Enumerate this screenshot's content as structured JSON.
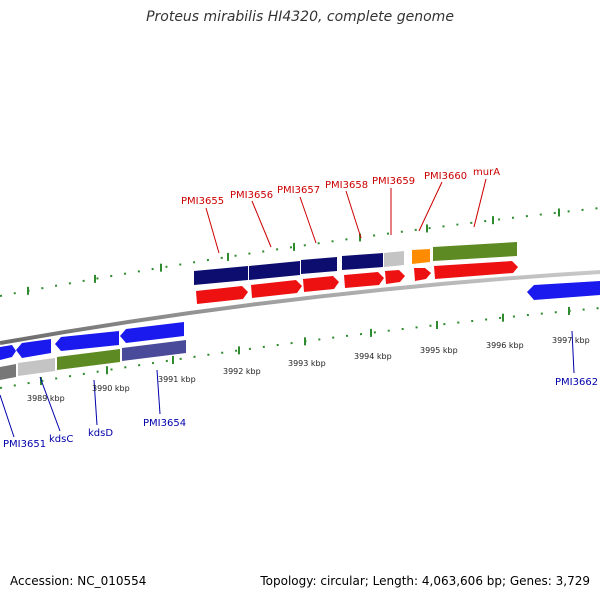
{
  "title": "Proteus mirabilis HI4320, complete genome",
  "footer": {
    "accession": "Accession: NC_010554",
    "summary": "Topology: circular; Length: 4,063,606 bp; Genes: 3,729"
  },
  "colors": {
    "backbone": "#8a8a8a",
    "tick": "#2e8b2e",
    "red": "#ee1111",
    "navy": "#0d0d70",
    "blue": "#1a1aee",
    "olive": "#5d8a22",
    "gray": "#c4c4c4",
    "darkgray": "#777777",
    "orange": "#ff8c00",
    "purple": "#4a4a9a"
  },
  "kbp_labels": [
    "3989 kbp",
    "3990 kbp",
    "3991 kbp",
    "3992 kbp",
    "3993 kbp",
    "3994 kbp",
    "3995 kbp",
    "3996 kbp",
    "3997 kbp"
  ],
  "gene_labels_top": [
    "PMI3655",
    "PMI3656",
    "PMI3657",
    "PMI3658",
    "PMI3659",
    "PMI3660",
    "murA"
  ],
  "gene_labels_bottom": [
    "PMI3651",
    "kdsC",
    "kdsD",
    "PMI3654",
    "PMI3662"
  ]
}
